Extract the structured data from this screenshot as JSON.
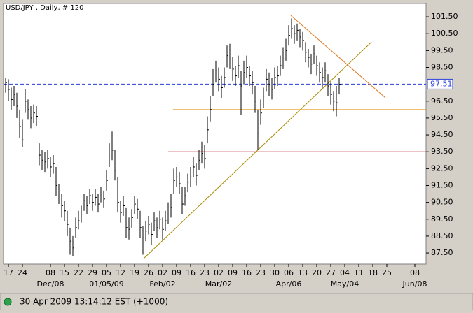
{
  "chart_data": {
    "type": "ohlc",
    "title": "USD/JPY , Daily, # 120",
    "color": "#000000",
    "x": [
      -1,
      0,
      1,
      2,
      3,
      4,
      5,
      6,
      7,
      8,
      9,
      10,
      11,
      12,
      13,
      14,
      15,
      16,
      17,
      18,
      19,
      20,
      21,
      22,
      23,
      24,
      25,
      26,
      27,
      28,
      29,
      30,
      31,
      32,
      33,
      34,
      35,
      36,
      37,
      38,
      39,
      40,
      41,
      42,
      43,
      44,
      45,
      46,
      47,
      48,
      49,
      50,
      51,
      52,
      53,
      54,
      55,
      56,
      57,
      58,
      59,
      60,
      61,
      62,
      63,
      64,
      65,
      66,
      67,
      68,
      69,
      70,
      71,
      72,
      73,
      74,
      75,
      76,
      77,
      78,
      79,
      80,
      81,
      82,
      83,
      84,
      85,
      86,
      87,
      88,
      89,
      90,
      91,
      92,
      93,
      94,
      95,
      96,
      97,
      98,
      99,
      100,
      101,
      102,
      103,
      104,
      105,
      106,
      107,
      108,
      109,
      110,
      111,
      112,
      113,
      114,
      115,
      116,
      117,
      118
    ],
    "close": [
      97.6,
      97.2,
      96.6,
      96.9,
      96.2,
      95.0,
      94.2,
      96.5,
      96.0,
      95.5,
      95.8,
      95.6,
      93.3,
      93.0,
      92.9,
      93.1,
      92.6,
      92.8,
      91.5,
      91.0,
      90.3,
      90.0,
      89.2,
      88.2,
      87.8,
      89.0,
      89.4,
      89.8,
      90.6,
      90.3,
      90.9,
      90.5,
      90.8,
      90.4,
      91.0,
      90.7,
      91.8,
      93.2,
      93.6,
      92.4,
      90.5,
      89.9,
      90.3,
      89.0,
      88.9,
      89.6,
      90.4,
      90.1,
      89.0,
      88.4,
      88.8,
      89.2,
      88.6,
      89.4,
      89.0,
      89.5,
      88.9,
      89.4,
      89.8,
      90.2,
      91.8,
      92.0,
      91.6,
      90.4,
      90.9,
      91.7,
      92.0,
      92.6,
      92.1,
      93.0,
      93.4,
      93.1,
      94.8,
      96.0,
      97.5,
      98.3,
      97.8,
      97.3,
      97.9,
      99.2,
      99.0,
      98.4,
      98.0,
      98.6,
      97.4,
      98.2,
      98.5,
      98.0,
      97.6,
      96.5,
      94.6,
      95.8,
      96.8,
      97.8,
      97.5,
      97.2,
      97.9,
      98.0,
      98.6,
      99.0,
      99.5,
      100.4,
      100.8,
      100.5,
      100.7,
      100.3,
      100.1,
      99.4,
      99.1,
      98.7,
      99.3,
      98.6,
      98.2,
      97.9,
      98.3,
      97.4,
      96.9,
      96.5,
      96.4,
      97.5
    ],
    "high": [
      97.9,
      97.8,
      97.3,
      97.4,
      97.0,
      96.0,
      95.4,
      97.2,
      96.6,
      96.2,
      96.3,
      96.2,
      94.0,
      93.6,
      93.5,
      93.6,
      93.2,
      93.3,
      92.6,
      91.6,
      91.0,
      90.6,
      90.0,
      89.0,
      88.5,
      89.6,
      90.0,
      90.3,
      91.0,
      90.9,
      91.3,
      91.0,
      91.3,
      91.0,
      91.4,
      91.2,
      92.4,
      94.0,
      94.7,
      93.6,
      92.0,
      90.6,
      90.9,
      90.2,
      89.6,
      90.1,
      90.9,
      90.7,
      90.0,
      89.1,
      89.4,
      89.7,
      89.3,
      89.9,
      89.6,
      90.0,
      89.6,
      90.0,
      90.5,
      91.0,
      92.5,
      92.6,
      92.3,
      91.4,
      91.4,
      92.2,
      92.6,
      93.2,
      92.8,
      93.6,
      94.1,
      93.9,
      95.6,
      96.8,
      98.4,
      98.9,
      98.5,
      98.0,
      98.5,
      99.8,
      99.9,
      99.1,
      98.6,
      99.2,
      98.3,
      98.9,
      99.2,
      98.6,
      98.3,
      97.4,
      96.0,
      96.6,
      97.3,
      98.4,
      98.2,
      97.9,
      98.5,
      98.6,
      99.2,
      99.7,
      100.2,
      101.0,
      101.4,
      101.0,
      101.1,
      100.8,
      100.6,
      100.0,
      99.6,
      99.3,
      99.8,
      99.2,
      98.8,
      98.5,
      98.8,
      98.1,
      97.6,
      97.1,
      97.4,
      97.9
    ],
    "low": [
      97.0,
      96.5,
      96.0,
      96.2,
      95.5,
      94.3,
      93.8,
      95.8,
      95.4,
      94.9,
      95.2,
      95.0,
      92.7,
      92.4,
      92.3,
      92.5,
      92.0,
      92.2,
      90.9,
      90.4,
      89.6,
      89.4,
      88.5,
      87.4,
      87.3,
      88.4,
      88.9,
      89.3,
      90.0,
      89.8,
      90.4,
      90.0,
      90.3,
      89.9,
      90.5,
      90.2,
      91.2,
      92.6,
      93.0,
      91.8,
      89.9,
      89.3,
      89.7,
      88.4,
      88.3,
      89.0,
      89.8,
      89.5,
      88.4,
      87.4,
      88.2,
      88.6,
      88.0,
      88.8,
      88.4,
      88.9,
      88.3,
      88.8,
      89.2,
      89.6,
      91.0,
      91.4,
      91.0,
      89.8,
      90.3,
      91.1,
      91.4,
      92.0,
      91.5,
      92.4,
      92.8,
      92.5,
      94.0,
      95.3,
      96.8,
      97.6,
      97.1,
      96.7,
      97.3,
      98.5,
      98.4,
      97.7,
      97.4,
      97.9,
      95.7,
      97.5,
      97.9,
      97.4,
      96.9,
      95.8,
      93.6,
      95.1,
      96.1,
      97.1,
      96.8,
      96.6,
      97.2,
      97.4,
      98.0,
      98.4,
      98.9,
      99.8,
      100.2,
      99.9,
      100.1,
      99.7,
      99.5,
      98.8,
      98.5,
      98.1,
      98.7,
      98.0,
      97.6,
      97.3,
      97.6,
      96.8,
      96.3,
      95.9,
      95.6,
      96.9
    ],
    "xlim": [
      -1.75,
      149
    ],
    "ylim": [
      86.84,
      102.29
    ],
    "yticks": [
      {
        "value": 87.5,
        "label": "87.50"
      },
      {
        "value": 88.5,
        "label": "88.50"
      },
      {
        "value": 89.5,
        "label": "89.50"
      },
      {
        "value": 90.5,
        "label": "90.50"
      },
      {
        "value": 91.5,
        "label": "91.50"
      },
      {
        "value": 92.5,
        "label": "92.50"
      },
      {
        "value": 93.5,
        "label": "93.50"
      },
      {
        "value": 94.5,
        "label": "94.50"
      },
      {
        "value": 95.5,
        "label": "95.50"
      },
      {
        "value": 96.5,
        "label": "96.50"
      },
      {
        "value": 98.5,
        "label": "98.50"
      },
      {
        "value": 99.5,
        "label": "99.50"
      },
      {
        "value": 100.5,
        "label": "100.50"
      },
      {
        "value": 101.5,
        "label": "101.50"
      }
    ],
    "xticks": [
      {
        "value": 0,
        "label": "17"
      },
      {
        "value": 5,
        "label": "24"
      },
      {
        "value": 15,
        "label": "08"
      },
      {
        "value": 20,
        "label": "15"
      },
      {
        "value": 25,
        "label": "22"
      },
      {
        "value": 30,
        "label": "29"
      },
      {
        "value": 35,
        "label": "05"
      },
      {
        "value": 40,
        "label": "12"
      },
      {
        "value": 45,
        "label": "19"
      },
      {
        "value": 50,
        "label": "26"
      },
      {
        "value": 55,
        "label": "02"
      },
      {
        "value": 60,
        "label": "09"
      },
      {
        "value": 65,
        "label": "16"
      },
      {
        "value": 70,
        "label": "23"
      },
      {
        "value": 75,
        "label": "02"
      },
      {
        "value": 80,
        "label": "09"
      },
      {
        "value": 85,
        "label": "16"
      },
      {
        "value": 90,
        "label": "23"
      },
      {
        "value": 95,
        "label": "30"
      },
      {
        "value": 100,
        "label": "06"
      },
      {
        "value": 105,
        "label": "13"
      },
      {
        "value": 110,
        "label": "20"
      },
      {
        "value": 115,
        "label": "27"
      },
      {
        "value": 120,
        "label": "04"
      },
      {
        "value": 125,
        "label": "11"
      },
      {
        "value": 130,
        "label": "18"
      },
      {
        "value": 135,
        "label": "25"
      },
      {
        "value": 145,
        "label": "08"
      }
    ],
    "month_ticks": [
      {
        "value": 15,
        "label": "Dec/08"
      },
      {
        "value": 35,
        "label": "01/05/09"
      },
      {
        "value": 55,
        "label": "Feb/02"
      },
      {
        "value": 75,
        "label": "Mar/02"
      },
      {
        "value": 100,
        "label": "Apr/06"
      },
      {
        "value": 120,
        "label": "May/04"
      },
      {
        "value": 145,
        "label": "Jun/08"
      }
    ],
    "hlines": [
      {
        "y": 97.51,
        "label": "97.51",
        "color": "#2a3fd8",
        "dashed": true
      },
      {
        "y": 96.0,
        "x0": 58.75,
        "color": "#e69a1e",
        "dashed": false
      },
      {
        "y": 93.5,
        "x0": 57,
        "color": "#c0161c",
        "dashed": false
      }
    ],
    "trendlines": [
      {
        "x": [
          48.25,
          129.5
        ],
        "y": [
          87.17,
          100.0
        ],
        "color": "#a88a00"
      },
      {
        "x": [
          100.75,
          134.5
        ],
        "y": [
          101.58,
          96.7
        ],
        "color": "#e07a20"
      }
    ]
  },
  "status": "30 Apr 2009 13:14:12  EST (+1000)"
}
